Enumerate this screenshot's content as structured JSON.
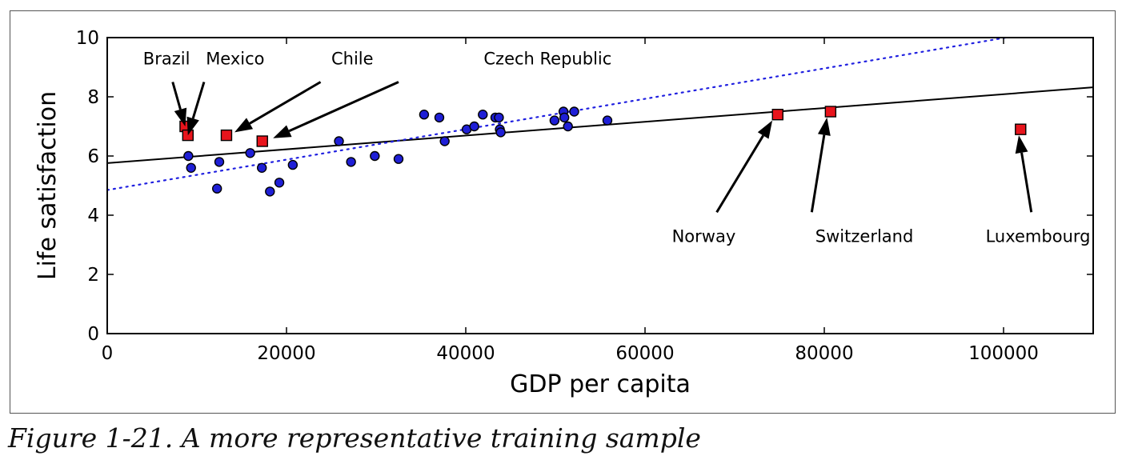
{
  "caption": "Figure 1-21. A more representative training sample",
  "chart_data": {
    "type": "scatter",
    "title": "",
    "xlabel": "GDP per capita",
    "ylabel": "Life satisfaction",
    "xlim": [
      0,
      110000
    ],
    "ylim": [
      0,
      10
    ],
    "xticks": [
      0,
      20000,
      40000,
      60000,
      80000,
      100000
    ],
    "yticks": [
      0,
      2,
      4,
      6,
      8,
      10
    ],
    "grid": false,
    "colors": {
      "circles": "#1f1fd6",
      "squares": "#e8141c",
      "solid_line": "#000000",
      "dotted_line": "#2020e0"
    },
    "circles": [
      {
        "x": 9050,
        "y": 6.0
      },
      {
        "x": 9350,
        "y": 5.6
      },
      {
        "x": 12250,
        "y": 4.9
      },
      {
        "x": 12500,
        "y": 5.8
      },
      {
        "x": 15950,
        "y": 6.1
      },
      {
        "x": 17250,
        "y": 5.6
      },
      {
        "x": 18150,
        "y": 4.8
      },
      {
        "x": 19200,
        "y": 5.1
      },
      {
        "x": 20700,
        "y": 5.7
      },
      {
        "x": 25850,
        "y": 6.5
      },
      {
        "x": 27200,
        "y": 5.8
      },
      {
        "x": 29850,
        "y": 6.0
      },
      {
        "x": 32500,
        "y": 5.9
      },
      {
        "x": 35350,
        "y": 7.4
      },
      {
        "x": 37050,
        "y": 7.3
      },
      {
        "x": 37650,
        "y": 6.5
      },
      {
        "x": 40100,
        "y": 6.9
      },
      {
        "x": 40950,
        "y": 7.0
      },
      {
        "x": 41900,
        "y": 7.4
      },
      {
        "x": 43300,
        "y": 7.3
      },
      {
        "x": 43700,
        "y": 7.3
      },
      {
        "x": 43800,
        "y": 6.9
      },
      {
        "x": 43900,
        "y": 6.8
      },
      {
        "x": 49900,
        "y": 7.2
      },
      {
        "x": 50900,
        "y": 7.5
      },
      {
        "x": 51000,
        "y": 7.3
      },
      {
        "x": 51400,
        "y": 7.0
      },
      {
        "x": 52100,
        "y": 7.5
      },
      {
        "x": 55800,
        "y": 7.2
      }
    ],
    "squares": [
      {
        "name": "Brazil",
        "x": 8700,
        "y": 7.0
      },
      {
        "name": "Mexico",
        "x": 9000,
        "y": 6.7
      },
      {
        "name": "Chile",
        "x": 13300,
        "y": 6.7
      },
      {
        "name": "Czech Republic",
        "x": 17300,
        "y": 6.5
      },
      {
        "name": "Norway",
        "x": 74800,
        "y": 7.4
      },
      {
        "name": "Switzerland",
        "x": 80700,
        "y": 7.5
      },
      {
        "name": "Luxembourg",
        "x": 101900,
        "y": 6.9
      }
    ],
    "annotations": [
      {
        "text": "Brazil",
        "target": {
          "x": 8700,
          "y": 7.0
        },
        "text_pos": {
          "x": 4000,
          "y": 9.1
        },
        "tail": {
          "x": 7300,
          "y": 8.5
        }
      },
      {
        "text": "Mexico",
        "target": {
          "x": 9000,
          "y": 6.7
        },
        "text_pos": {
          "x": 11000,
          "y": 9.1
        },
        "tail": {
          "x": 10800,
          "y": 8.5
        }
      },
      {
        "text": "Chile",
        "target": {
          "x": 14200,
          "y": 6.8
        },
        "text_pos": {
          "x": 25000,
          "y": 9.1
        },
        "tail": {
          "x": 23800,
          "y": 8.5
        }
      },
      {
        "text": "Czech Republic",
        "target": {
          "x": 18500,
          "y": 6.6
        },
        "text_pos": {
          "x": 42000,
          "y": 9.1
        },
        "tail": {
          "x": 32500,
          "y": 8.5
        }
      },
      {
        "text": "Norway",
        "target": {
          "x": 74200,
          "y": 7.2
        },
        "text_pos": {
          "x": 63000,
          "y": 3.1
        },
        "tail": {
          "x": 68000,
          "y": 4.1
        }
      },
      {
        "text": "Switzerland",
        "target": {
          "x": 80300,
          "y": 7.3
        },
        "text_pos": {
          "x": 79000,
          "y": 3.1
        },
        "tail": {
          "x": 78600,
          "y": 4.1
        }
      },
      {
        "text": "Luxembourg",
        "target": {
          "x": 101700,
          "y": 6.7
        },
        "text_pos": {
          "x": 98000,
          "y": 3.1
        },
        "tail": {
          "x": 103100,
          "y": 4.1
        }
      }
    ],
    "lines": [
      {
        "style": "solid",
        "color": "#000000",
        "x": [
          0,
          110000
        ],
        "y": [
          5.76,
          8.32
        ]
      },
      {
        "style": "dotted",
        "color": "#2020e0",
        "x": [
          0,
          110000
        ],
        "y": [
          4.85,
          10.5
        ]
      }
    ]
  }
}
